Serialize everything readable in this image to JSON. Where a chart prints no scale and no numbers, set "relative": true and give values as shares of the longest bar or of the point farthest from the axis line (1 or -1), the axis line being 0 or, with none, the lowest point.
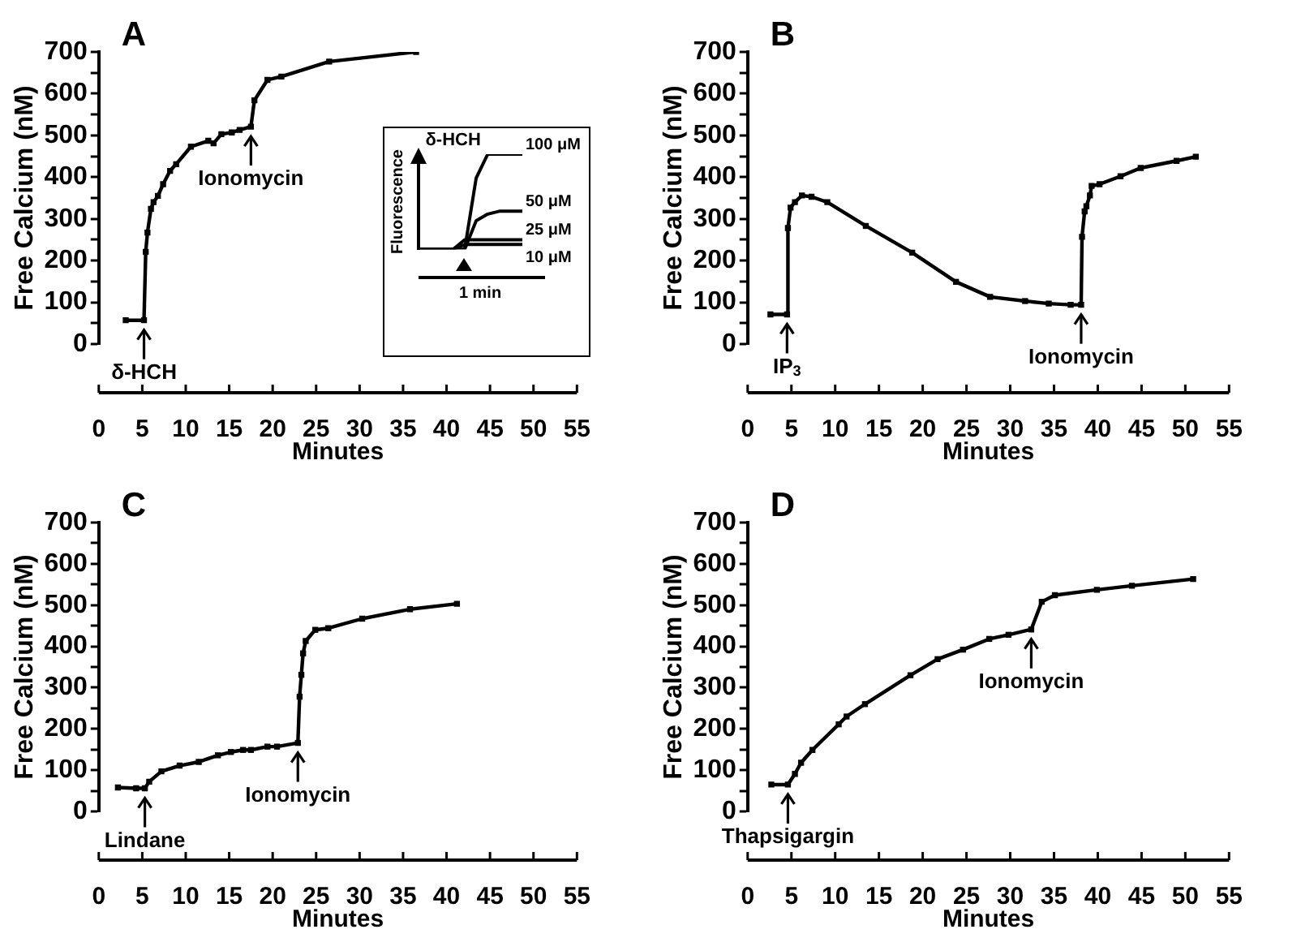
{
  "chart_data": [
    {
      "type": "line",
      "title": "A",
      "xlabel": "Minutes",
      "ylabel": "Free Calcium (nM)",
      "marker": "square",
      "xlim": [
        0,
        55
      ],
      "xticks": [
        0,
        5,
        10,
        15,
        20,
        25,
        30,
        35,
        40,
        45,
        50,
        55
      ],
      "ylim": [
        0,
        700
      ],
      "yticks": [
        0,
        {
          "value": 50,
          "label": null
        },
        100,
        {
          "value": 150,
          "label": null
        },
        200,
        {
          "value": 250,
          "label": null
        },
        300,
        {
          "value": 350,
          "label": null
        },
        400,
        {
          "value": 450,
          "label": null
        },
        500,
        {
          "value": 550,
          "label": null
        },
        600,
        {
          "value": 650,
          "label": null
        },
        700
      ],
      "x": [
        3.1,
        5.2,
        5.4,
        5.6,
        6.0,
        6.3,
        6.8,
        7.4,
        8.2,
        8.9,
        10.6,
        12.6,
        13.2,
        14.1,
        15.3,
        16.2,
        17.5,
        17.9,
        19.4,
        21.0,
        26.5,
        36.5
      ],
      "series": [
        {
          "color": "#000000",
          "values": [
            57,
            57,
            221,
            267,
            324,
            340,
            355,
            383,
            415,
            431,
            473,
            487,
            481,
            503,
            507,
            513,
            521,
            584,
            633,
            641,
            677,
            700
          ]
        }
      ],
      "annotations": [
        {
          "text": "δ-HCH",
          "x": 5.2,
          "y": 57
        },
        {
          "text": "Ionomycin",
          "x": 17.5,
          "y": 521
        }
      ]
    },
    {
      "type": "line",
      "title": "B",
      "xlabel": "Minutes",
      "ylabel": "Free Calcium (nM)",
      "marker": "square",
      "xlim": [
        0,
        55
      ],
      "xticks": [
        0,
        5,
        10,
        15,
        20,
        25,
        30,
        35,
        40,
        45,
        50,
        55
      ],
      "ylim": [
        0,
        700
      ],
      "yticks": [
        0,
        {
          "value": 50,
          "label": null
        },
        100,
        {
          "value": 150,
          "label": null
        },
        200,
        {
          "value": 250,
          "label": null
        },
        300,
        {
          "value": 350,
          "label": null
        },
        400,
        {
          "value": 450,
          "label": null
        },
        500,
        {
          "value": 550,
          "label": null
        },
        600,
        {
          "value": 650,
          "label": null
        },
        700
      ],
      "x": [
        2.6,
        4.5,
        4.6,
        4.9,
        5.4,
        6.2,
        7.3,
        9.1,
        13.5,
        18.8,
        23.8,
        27.7,
        31.7,
        34.4,
        36.9,
        38.1,
        38.2,
        38.5,
        38.7,
        39.1,
        39.3,
        40.2,
        42.6,
        44.9,
        49.0,
        51.2
      ],
      "series": [
        {
          "color": "#000000",
          "values": [
            71,
            71,
            278,
            327,
            340,
            356,
            353,
            340,
            283,
            219,
            149,
            113,
            103,
            97,
            94,
            94,
            257,
            318,
            330,
            356,
            379,
            383,
            402,
            422,
            439,
            449
          ]
        }
      ],
      "annotations": [
        {
          "text": "IP$_{3}$",
          "x": 4.5,
          "y": 71
        },
        {
          "text": "Ionomycin",
          "x": 38.1,
          "y": 94
        }
      ]
    },
    {
      "type": "line",
      "title": "C",
      "xlabel": "Minutes",
      "ylabel": "Free Calcium (nM)",
      "marker": "square",
      "xlim": [
        0,
        55
      ],
      "xticks": [
        0,
        5,
        10,
        15,
        20,
        25,
        30,
        35,
        40,
        45,
        50,
        55
      ],
      "ylim": [
        0,
        700
      ],
      "yticks": [
        0,
        {
          "value": 50,
          "label": null
        },
        100,
        {
          "value": 150,
          "label": null
        },
        200,
        {
          "value": 250,
          "label": null
        },
        300,
        {
          "value": 350,
          "label": null
        },
        400,
        {
          "value": 450,
          "label": null
        },
        500,
        {
          "value": 550,
          "label": null
        },
        600,
        {
          "value": 650,
          "label": null
        },
        700
      ],
      "x": [
        2.2,
        4.3,
        5.3,
        5.8,
        7.2,
        9.3,
        11.5,
        13.7,
        15.2,
        16.6,
        17.5,
        19.4,
        20.5,
        22.9,
        23.1,
        23.3,
        23.5,
        23.8,
        24.9,
        26.4,
        30.3,
        35.8,
        41.2
      ],
      "series": [
        {
          "color": "#000000",
          "values": [
            58,
            56,
            56,
            72,
            97,
            111,
            120,
            136,
            144,
            149,
            149,
            157,
            157,
            166,
            278,
            331,
            383,
            413,
            440,
            444,
            467,
            490,
            503
          ]
        }
      ],
      "annotations": [
        {
          "text": "Lindane",
          "x": 5.3,
          "y": 56
        },
        {
          "text": "Ionomycin",
          "x": 22.9,
          "y": 166
        }
      ]
    },
    {
      "type": "line",
      "title": "D",
      "xlabel": "Minutes",
      "ylabel": "Free Calcium (nM)",
      "marker": "square",
      "xlim": [
        0,
        55
      ],
      "xticks": [
        0,
        5,
        10,
        15,
        20,
        25,
        30,
        35,
        40,
        45,
        50,
        55
      ],
      "ylim": [
        0,
        700
      ],
      "yticks": [
        0,
        {
          "value": 50,
          "label": null
        },
        100,
        {
          "value": 150,
          "label": null
        },
        200,
        {
          "value": 250,
          "label": null
        },
        300,
        {
          "value": 350,
          "label": null
        },
        400,
        {
          "value": 450,
          "label": null
        },
        500,
        {
          "value": 550,
          "label": null
        },
        600,
        {
          "value": 650,
          "label": null
        },
        700
      ],
      "x": [
        2.7,
        4.6,
        5.4,
        6.1,
        7.4,
        10.4,
        11.3,
        13.4,
        18.6,
        21.7,
        24.6,
        27.6,
        29.8,
        32.4,
        33.6,
        35.1,
        39.9,
        43.9,
        50.9
      ],
      "series": [
        {
          "color": "#000000",
          "values": [
            65,
            65,
            91,
            118,
            149,
            211,
            230,
            260,
            330,
            369,
            392,
            418,
            428,
            441,
            508,
            524,
            537,
            547,
            563
          ]
        }
      ],
      "annotations": [
        {
          "text": "Thapsigargin",
          "x": 4.6,
          "y": 65
        },
        {
          "text": "Ionomycin",
          "x": 32.4,
          "y": 441
        }
      ]
    },
    {
      "type": "line",
      "relative": true,
      "ylabel": "Fluorescence",
      "marker": "none",
      "categories": [
        null,
        null,
        null,
        null,
        null,
        null,
        null,
        null,
        null,
        null
      ],
      "series": [
        {
          "name": "100 μM",
          "color": "#000000",
          "values": [
            0,
            0,
            0,
            0,
            0,
            0.75,
            1,
            1,
            1,
            1
          ]
        },
        {
          "name": "50 μM",
          "color": "#000000",
          "values": [
            0,
            0,
            0,
            0,
            0,
            0.3,
            0.37,
            0.4,
            0.4,
            0.4
          ]
        },
        {
          "name": "25 μM",
          "color": "#000000",
          "values": [
            0,
            0,
            0,
            0,
            0.1,
            0.1,
            0.1,
            0.1,
            0.1,
            0.1
          ]
        },
        {
          "name": "10 μM",
          "color": "#000000",
          "values": [
            0,
            0,
            0,
            0,
            0.05,
            0.05,
            0.05,
            0.05,
            0.05,
            0.05
          ]
        }
      ],
      "annotations": [
        "δ-HCH",
        "1 min"
      ]
    }
  ]
}
